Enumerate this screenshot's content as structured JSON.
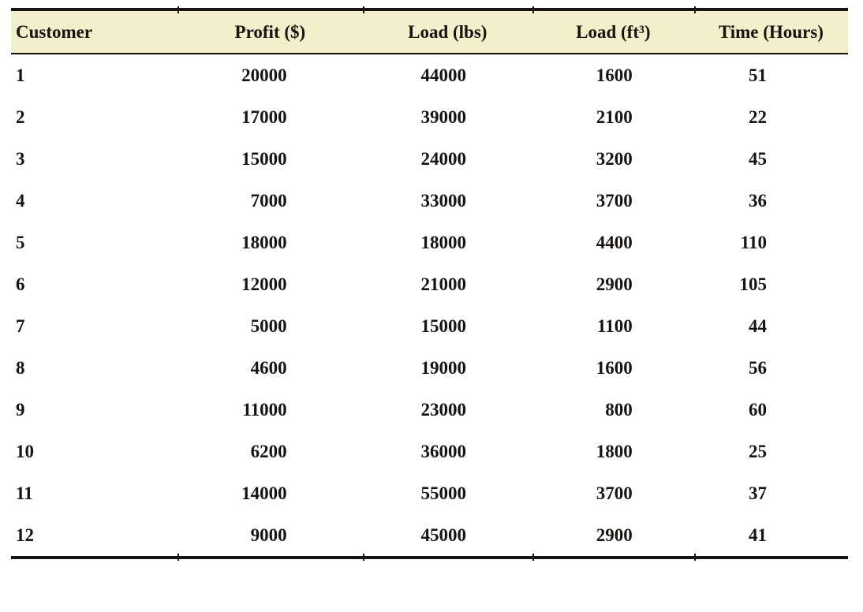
{
  "table": {
    "columns": [
      "Customer",
      "Profit ($)",
      "Load (lbs)",
      "Load (ft³)",
      "Time (Hours)"
    ],
    "rows": [
      [
        "1",
        "20000",
        "44000",
        "1600",
        "51"
      ],
      [
        "2",
        "17000",
        "39000",
        "2100",
        "22"
      ],
      [
        "3",
        "15000",
        "24000",
        "3200",
        "45"
      ],
      [
        "4",
        "7000",
        "33000",
        "3700",
        "36"
      ],
      [
        "5",
        "18000",
        "18000",
        "4400",
        "110"
      ],
      [
        "6",
        "12000",
        "21000",
        "2900",
        "105"
      ],
      [
        "7",
        "5000",
        "15000",
        "1100",
        "44"
      ],
      [
        "8",
        "4600",
        "19000",
        "1600",
        "56"
      ],
      [
        "9",
        "11000",
        "23000",
        "800",
        "60"
      ],
      [
        "10",
        "6200",
        "36000",
        "1800",
        "25"
      ],
      [
        "11",
        "14000",
        "55000",
        "3700",
        "37"
      ],
      [
        "12",
        "9000",
        "45000",
        "2900",
        "41"
      ]
    ],
    "colors": {
      "header_bg": "#f5eecb",
      "rule": "#141414",
      "text": "#161310",
      "page_bg": "#ffffff"
    }
  }
}
